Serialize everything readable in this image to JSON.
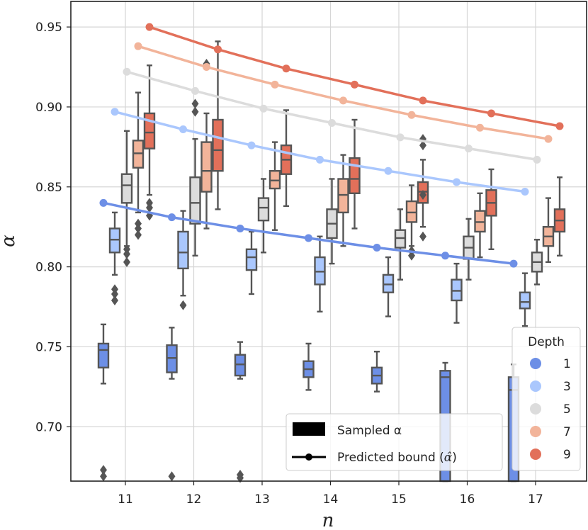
{
  "chart_data": {
    "type": "box",
    "xlabel": "n",
    "ylabel": "α",
    "ylim": [
      0.666,
      0.966
    ],
    "x": [
      11,
      12,
      13,
      14,
      15,
      16,
      17
    ],
    "yticks": [
      "0.70",
      "0.75",
      "0.80",
      "0.85",
      "0.90",
      "0.95"
    ],
    "ytick_values": [
      0.7,
      0.75,
      0.8,
      0.85,
      0.9,
      0.95
    ],
    "grid": true,
    "legend": {
      "title": "Depth",
      "position": "bottom-right",
      "entries": [
        "1",
        "3",
        "5",
        "7",
        "9"
      ]
    },
    "style_legend": {
      "position": "bottom-center",
      "sampled_label": "Sampled α",
      "predicted_prefix": "Predicted bound (",
      "predicted_symbol": "α̂",
      "predicted_suffix": ")"
    },
    "series": [
      {
        "name": "1",
        "color": "#6d8fe6",
        "boxes": [
          {
            "n": 11,
            "whislo": 0.727,
            "q1": 0.737,
            "med": 0.748,
            "q3": 0.752,
            "whishi": 0.764,
            "fliers": [
              0.673,
              0.669
            ]
          },
          {
            "n": 12,
            "whislo": 0.73,
            "q1": 0.734,
            "med": 0.743,
            "q3": 0.751,
            "whishi": 0.762,
            "fliers": [
              0.669
            ]
          },
          {
            "n": 13,
            "whislo": 0.73,
            "q1": 0.732,
            "med": 0.739,
            "q3": 0.745,
            "whishi": 0.753,
            "fliers": [
              0.67,
              0.668
            ]
          },
          {
            "n": 14,
            "whislo": 0.723,
            "q1": 0.731,
            "med": 0.736,
            "q3": 0.741,
            "whishi": 0.752,
            "fliers": []
          },
          {
            "n": 15,
            "whislo": 0.722,
            "q1": 0.727,
            "med": 0.732,
            "q3": 0.737,
            "whishi": 0.747,
            "fliers": []
          },
          {
            "n": 16,
            "whislo": 0.666,
            "q1": 0.666,
            "med": 0.731,
            "q3": 0.735,
            "whishi": 0.74,
            "fliers": []
          },
          {
            "n": 17,
            "whislo": 0.666,
            "q1": 0.666,
            "med": 0.723,
            "q3": 0.731,
            "whishi": 0.739,
            "fliers": []
          }
        ],
        "predicted": [
          0.84,
          0.831,
          0.824,
          0.818,
          0.812,
          0.807,
          0.802
        ]
      },
      {
        "name": "3",
        "color": "#aac7fd",
        "boxes": [
          {
            "n": 11,
            "whislo": 0.795,
            "q1": 0.809,
            "med": 0.817,
            "q3": 0.824,
            "whishi": 0.834,
            "fliers": [
              0.786,
              0.783,
              0.779
            ]
          },
          {
            "n": 12,
            "whislo": 0.782,
            "q1": 0.799,
            "med": 0.809,
            "q3": 0.822,
            "whishi": 0.835,
            "fliers": [
              0.776
            ]
          },
          {
            "n": 13,
            "whislo": 0.783,
            "q1": 0.798,
            "med": 0.806,
            "q3": 0.811,
            "whishi": 0.822,
            "fliers": []
          },
          {
            "n": 14,
            "whislo": 0.772,
            "q1": 0.789,
            "med": 0.797,
            "q3": 0.806,
            "whishi": 0.819,
            "fliers": []
          },
          {
            "n": 15,
            "whislo": 0.769,
            "q1": 0.784,
            "med": 0.789,
            "q3": 0.795,
            "whishi": 0.806,
            "fliers": []
          },
          {
            "n": 16,
            "whislo": 0.765,
            "q1": 0.779,
            "med": 0.785,
            "q3": 0.792,
            "whishi": 0.802,
            "fliers": []
          },
          {
            "n": 17,
            "whislo": 0.763,
            "q1": 0.774,
            "med": 0.778,
            "q3": 0.784,
            "whishi": 0.796,
            "fliers": []
          }
        ],
        "predicted": [
          0.897,
          0.886,
          0.876,
          0.867,
          0.86,
          0.853,
          0.847
        ]
      },
      {
        "name": "5",
        "color": "#dcdcdc",
        "boxes": [
          {
            "n": 11,
            "whislo": 0.813,
            "q1": 0.84,
            "med": 0.851,
            "q3": 0.858,
            "whishi": 0.885,
            "fliers": [
              0.811,
              0.808,
              0.803
            ]
          },
          {
            "n": 12,
            "whislo": 0.807,
            "q1": 0.827,
            "med": 0.84,
            "q3": 0.856,
            "whishi": 0.88,
            "fliers": [
              0.902,
              0.897
            ]
          },
          {
            "n": 13,
            "whislo": 0.809,
            "q1": 0.829,
            "med": 0.837,
            "q3": 0.843,
            "whishi": 0.855,
            "fliers": []
          },
          {
            "n": 14,
            "whislo": 0.802,
            "q1": 0.818,
            "med": 0.827,
            "q3": 0.836,
            "whishi": 0.855,
            "fliers": []
          },
          {
            "n": 15,
            "whislo": 0.792,
            "q1": 0.812,
            "med": 0.818,
            "q3": 0.823,
            "whishi": 0.836,
            "fliers": []
          },
          {
            "n": 16,
            "whislo": 0.792,
            "q1": 0.805,
            "med": 0.812,
            "q3": 0.819,
            "whishi": 0.83,
            "fliers": []
          },
          {
            "n": 17,
            "whislo": 0.789,
            "q1": 0.797,
            "med": 0.803,
            "q3": 0.809,
            "whishi": 0.817,
            "fliers": []
          }
        ],
        "predicted": [
          0.922,
          0.91,
          0.899,
          0.89,
          0.881,
          0.874,
          0.867
        ]
      },
      {
        "name": "7",
        "color": "#f2b49a",
        "boxes": [
          {
            "n": 11,
            "whislo": 0.834,
            "q1": 0.862,
            "med": 0.871,
            "q3": 0.879,
            "whishi": 0.909,
            "fliers": [
              0.827,
              0.824,
              0.82
            ]
          },
          {
            "n": 12,
            "whislo": 0.824,
            "q1": 0.847,
            "med": 0.86,
            "q3": 0.878,
            "whishi": 0.896,
            "fliers": [
              0.927
            ]
          },
          {
            "n": 13,
            "whislo": 0.823,
            "q1": 0.849,
            "med": 0.854,
            "q3": 0.86,
            "whishi": 0.878,
            "fliers": []
          },
          {
            "n": 14,
            "whislo": 0.813,
            "q1": 0.834,
            "med": 0.845,
            "q3": 0.855,
            "whishi": 0.87,
            "fliers": []
          },
          {
            "n": 15,
            "whislo": 0.813,
            "q1": 0.828,
            "med": 0.834,
            "q3": 0.841,
            "whishi": 0.851,
            "fliers": [
              0.81,
              0.807
            ]
          },
          {
            "n": 16,
            "whislo": 0.806,
            "q1": 0.822,
            "med": 0.828,
            "q3": 0.835,
            "whishi": 0.846,
            "fliers": []
          },
          {
            "n": 17,
            "whislo": 0.803,
            "q1": 0.813,
            "med": 0.819,
            "q3": 0.825,
            "whishi": 0.843,
            "fliers": []
          }
        ],
        "predicted": [
          0.938,
          0.925,
          0.914,
          0.904,
          0.895,
          0.887,
          0.88
        ]
      },
      {
        "name": "9",
        "color": "#e2705a",
        "boxes": [
          {
            "n": 11,
            "whislo": 0.845,
            "q1": 0.874,
            "med": 0.884,
            "q3": 0.896,
            "whishi": 0.926,
            "fliers": [
              0.84,
              0.837,
              0.832
            ]
          },
          {
            "n": 12,
            "whislo": 0.836,
            "q1": 0.86,
            "med": 0.873,
            "q3": 0.892,
            "whishi": 0.941,
            "fliers": []
          },
          {
            "n": 13,
            "whislo": 0.838,
            "q1": 0.858,
            "med": 0.867,
            "q3": 0.876,
            "whishi": 0.898,
            "fliers": []
          },
          {
            "n": 14,
            "whislo": 0.824,
            "q1": 0.846,
            "med": 0.855,
            "q3": 0.868,
            "whishi": 0.892,
            "fliers": []
          },
          {
            "n": 15,
            "whislo": 0.825,
            "q1": 0.84,
            "med": 0.847,
            "q3": 0.853,
            "whishi": 0.867,
            "fliers": [
              0.88,
              0.876,
              0.845,
              0.819
            ]
          },
          {
            "n": 16,
            "whislo": 0.811,
            "q1": 0.832,
            "med": 0.84,
            "q3": 0.848,
            "whishi": 0.861,
            "fliers": []
          },
          {
            "n": 17,
            "whislo": 0.807,
            "q1": 0.822,
            "med": 0.829,
            "q3": 0.836,
            "whishi": 0.856,
            "fliers": []
          }
        ],
        "predicted": [
          0.95,
          0.936,
          0.924,
          0.914,
          0.904,
          0.896,
          0.888
        ]
      }
    ]
  }
}
